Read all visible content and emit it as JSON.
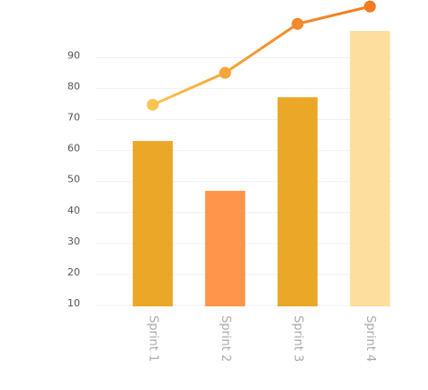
{
  "chart_data": {
    "type": "bar",
    "categories": [
      "Sprint 1",
      "Sprint 2",
      "Sprint 3",
      "Sprint 4"
    ],
    "series": [
      {
        "type": "bar",
        "colors": [
          "#eba728",
          "#ff944b",
          "#eba728",
          "#fdde9e"
        ],
        "values": [
          62.5,
          46.4,
          76.6,
          98
        ]
      },
      {
        "type": "line",
        "colors": [
          "#f9c550",
          "#f5a53a",
          "#f08a2a",
          "#f47a1f"
        ],
        "values": [
          74.2,
          84.5,
          100.3,
          105.9
        ]
      }
    ],
    "ylim": [
      10,
      108
    ],
    "yticks": [
      10,
      20,
      30,
      40,
      50,
      60,
      70,
      80,
      90
    ],
    "grid": true
  }
}
